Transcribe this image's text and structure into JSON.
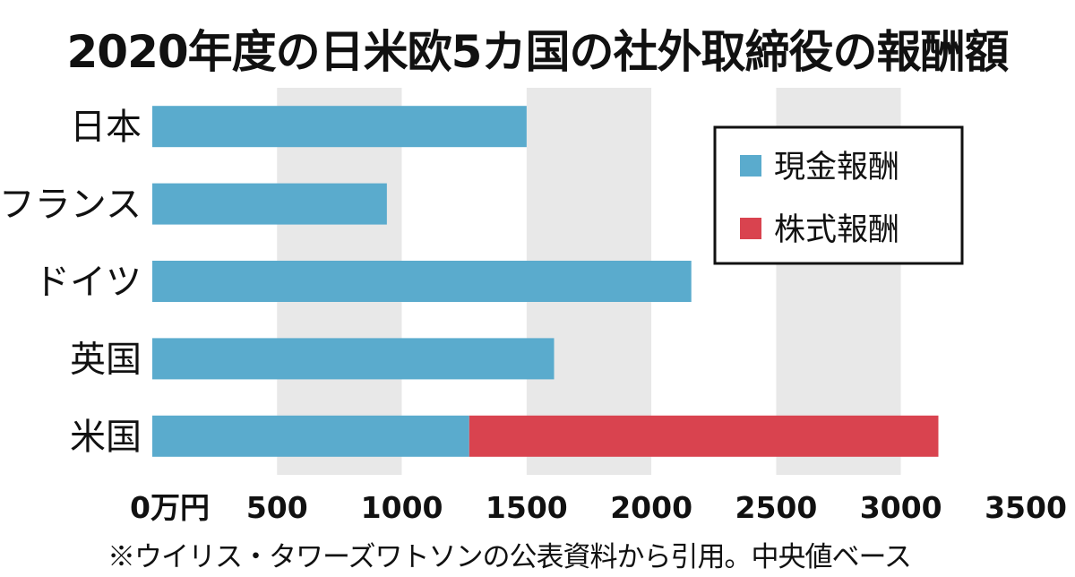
{
  "chart_data": {
    "type": "bar",
    "orientation": "horizontal",
    "stacked": true,
    "title": "2020年度の日米欧5カ国の社外取締役の報酬額",
    "categories": [
      "日本",
      "フランス",
      "ドイツ",
      "英国",
      "米国"
    ],
    "series": [
      {
        "name": "現金報酬",
        "color": "#5aabcd",
        "values": [
          1500,
          940,
          2160,
          1610,
          1270
        ]
      },
      {
        "name": "株式報酬",
        "color": "#d9434f",
        "values": [
          0,
          0,
          0,
          0,
          1880
        ]
      }
    ],
    "xlim": [
      0,
      3500
    ],
    "x_ticks": [
      "0万円",
      "500",
      "1000",
      "1500",
      "2000",
      "2500",
      "3000",
      "3500"
    ],
    "x_tick_values": [
      0,
      500,
      1000,
      1500,
      2000,
      2500,
      3000,
      3500
    ],
    "band_colors": [
      "#ffffff",
      "#e8e8e8"
    ],
    "legend_position": "top-right",
    "note": "※ウイリス・タワーズワトソンの公表資料から引用。中央値ベース"
  }
}
